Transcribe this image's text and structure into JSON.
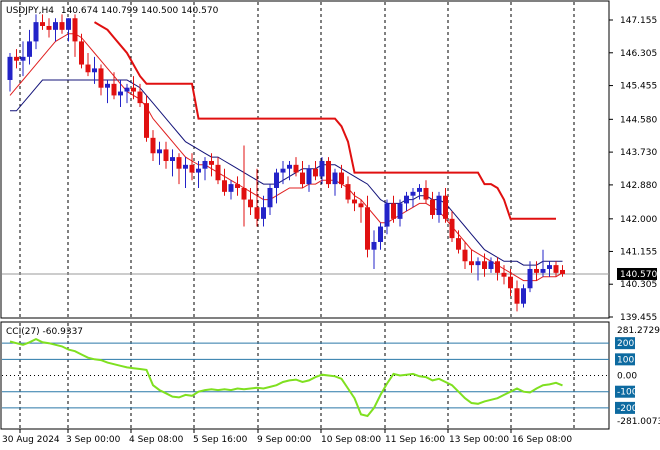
{
  "header": {
    "symbol": "USDJPY,H4",
    "ohlc": "140.674 140.799 140.500 140.570"
  },
  "colors": {
    "bull": "#2323c8",
    "bear": "#e01010",
    "ma_fast": "#e02020",
    "ma_slow": "#14147a",
    "stop_line": "#e01010",
    "cci_line": "#7fe020",
    "cci_levels": "#2a78a8",
    "grid": "#000000",
    "badge_bg": "#0d6aa0"
  },
  "chart_data": [
    {
      "type": "candlestick",
      "title": "USDJPY,H4",
      "ylim": [
        139.455,
        147.6
      ],
      "y_ticks": [
        "147.155",
        "146.305",
        "145.455",
        "144.580",
        "143.730",
        "142.880",
        "142.000",
        "141.155",
        "140.305",
        "139.455"
      ],
      "x_ticks": [
        "30 Aug 2024",
        "3 Sep 00:00",
        "4 Sep 08:00",
        "5 Sep 16:00",
        "9 Sep 00:00",
        "10 Sep 08:00",
        "11 Sep 16:00",
        "13 Sep 00:00",
        "16 Sep 08:00"
      ],
      "last_price": "140.570",
      "candles": [
        {
          "o": 145.6,
          "h": 146.3,
          "l": 145.3,
          "c": 146.2
        },
        {
          "o": 146.2,
          "h": 146.4,
          "l": 145.9,
          "c": 146.1
        },
        {
          "o": 146.1,
          "h": 146.6,
          "l": 145.7,
          "c": 146.2
        },
        {
          "o": 146.2,
          "h": 146.9,
          "l": 146.0,
          "c": 146.6
        },
        {
          "o": 146.6,
          "h": 147.3,
          "l": 146.4,
          "c": 147.1
        },
        {
          "o": 147.1,
          "h": 147.3,
          "l": 146.9,
          "c": 147.0
        },
        {
          "o": 147.0,
          "h": 147.2,
          "l": 146.7,
          "c": 146.9
        },
        {
          "o": 146.9,
          "h": 147.2,
          "l": 146.6,
          "c": 147.1
        },
        {
          "o": 147.1,
          "h": 147.3,
          "l": 146.8,
          "c": 146.9
        },
        {
          "o": 146.9,
          "h": 147.2,
          "l": 146.6,
          "c": 147.2
        },
        {
          "o": 147.2,
          "h": 147.3,
          "l": 146.2,
          "c": 146.6
        },
        {
          "o": 146.6,
          "h": 146.8,
          "l": 145.9,
          "c": 146.0
        },
        {
          "o": 146.0,
          "h": 146.3,
          "l": 145.7,
          "c": 145.8
        },
        {
          "o": 145.8,
          "h": 146.2,
          "l": 145.5,
          "c": 145.9
        },
        {
          "o": 145.9,
          "h": 146.0,
          "l": 145.2,
          "c": 145.4
        },
        {
          "o": 145.4,
          "h": 145.6,
          "l": 145.0,
          "c": 145.5
        },
        {
          "o": 145.5,
          "h": 145.8,
          "l": 145.1,
          "c": 145.2
        },
        {
          "o": 145.2,
          "h": 145.6,
          "l": 144.9,
          "c": 145.3
        },
        {
          "o": 145.3,
          "h": 145.5,
          "l": 145.0,
          "c": 145.4
        },
        {
          "o": 145.4,
          "h": 145.7,
          "l": 145.1,
          "c": 145.3
        },
        {
          "o": 145.3,
          "h": 145.5,
          "l": 144.9,
          "c": 145.0
        },
        {
          "o": 145.0,
          "h": 145.2,
          "l": 144.0,
          "c": 144.1
        },
        {
          "o": 144.1,
          "h": 144.3,
          "l": 143.5,
          "c": 143.7
        },
        {
          "o": 143.7,
          "h": 144.0,
          "l": 143.4,
          "c": 143.8
        },
        {
          "o": 143.8,
          "h": 144.0,
          "l": 143.3,
          "c": 143.5
        },
        {
          "o": 143.5,
          "h": 143.8,
          "l": 143.1,
          "c": 143.6
        },
        {
          "o": 143.6,
          "h": 143.7,
          "l": 142.9,
          "c": 143.3
        },
        {
          "o": 143.3,
          "h": 143.6,
          "l": 142.8,
          "c": 143.4
        },
        {
          "o": 143.4,
          "h": 143.7,
          "l": 143.0,
          "c": 143.2
        },
        {
          "o": 143.2,
          "h": 143.5,
          "l": 142.8,
          "c": 143.3
        },
        {
          "o": 143.3,
          "h": 143.6,
          "l": 143.0,
          "c": 143.5
        },
        {
          "o": 143.5,
          "h": 143.7,
          "l": 143.1,
          "c": 143.4
        },
        {
          "o": 143.4,
          "h": 143.6,
          "l": 142.9,
          "c": 143.0
        },
        {
          "o": 143.0,
          "h": 143.3,
          "l": 142.6,
          "c": 142.7
        },
        {
          "o": 142.7,
          "h": 143.0,
          "l": 142.5,
          "c": 142.9
        },
        {
          "o": 142.9,
          "h": 143.1,
          "l": 142.6,
          "c": 142.8
        },
        {
          "o": 142.8,
          "h": 143.9,
          "l": 141.8,
          "c": 142.5
        },
        {
          "o": 142.5,
          "h": 142.8,
          "l": 142.1,
          "c": 142.3
        },
        {
          "o": 142.3,
          "h": 143.3,
          "l": 141.8,
          "c": 142.0
        },
        {
          "o": 142.0,
          "h": 142.6,
          "l": 141.8,
          "c": 142.3
        },
        {
          "o": 142.3,
          "h": 142.9,
          "l": 142.1,
          "c": 142.8
        },
        {
          "o": 142.8,
          "h": 143.3,
          "l": 142.4,
          "c": 143.2
        },
        {
          "o": 143.2,
          "h": 143.5,
          "l": 142.9,
          "c": 143.3
        },
        {
          "o": 143.3,
          "h": 143.5,
          "l": 143.0,
          "c": 143.4
        },
        {
          "o": 143.4,
          "h": 143.6,
          "l": 143.1,
          "c": 143.2
        },
        {
          "o": 143.2,
          "h": 143.5,
          "l": 142.8,
          "c": 142.9
        },
        {
          "o": 142.9,
          "h": 143.4,
          "l": 142.7,
          "c": 143.3
        },
        {
          "o": 143.3,
          "h": 143.5,
          "l": 143.0,
          "c": 143.1
        },
        {
          "o": 143.1,
          "h": 143.6,
          "l": 142.9,
          "c": 143.5
        },
        {
          "o": 143.5,
          "h": 143.6,
          "l": 142.8,
          "c": 142.9
        },
        {
          "o": 142.9,
          "h": 143.3,
          "l": 142.6,
          "c": 143.2
        },
        {
          "o": 143.2,
          "h": 143.4,
          "l": 142.8,
          "c": 142.9
        },
        {
          "o": 142.9,
          "h": 143.1,
          "l": 142.4,
          "c": 142.5
        },
        {
          "o": 142.5,
          "h": 142.7,
          "l": 142.2,
          "c": 142.4
        },
        {
          "o": 142.4,
          "h": 142.5,
          "l": 141.9,
          "c": 142.3
        },
        {
          "o": 142.3,
          "h": 142.6,
          "l": 141.0,
          "c": 141.2
        },
        {
          "o": 141.2,
          "h": 141.7,
          "l": 140.7,
          "c": 141.4
        },
        {
          "o": 141.4,
          "h": 141.9,
          "l": 141.2,
          "c": 141.8
        },
        {
          "o": 141.8,
          "h": 142.5,
          "l": 141.6,
          "c": 142.4
        },
        {
          "o": 142.4,
          "h": 142.6,
          "l": 141.9,
          "c": 142.0
        },
        {
          "o": 142.0,
          "h": 142.5,
          "l": 141.8,
          "c": 142.4
        },
        {
          "o": 142.4,
          "h": 142.7,
          "l": 142.2,
          "c": 142.6
        },
        {
          "o": 142.6,
          "h": 142.8,
          "l": 142.3,
          "c": 142.7
        },
        {
          "o": 142.7,
          "h": 142.9,
          "l": 142.5,
          "c": 142.8
        },
        {
          "o": 142.8,
          "h": 143.0,
          "l": 142.4,
          "c": 142.5
        },
        {
          "o": 142.5,
          "h": 142.7,
          "l": 142.0,
          "c": 142.1
        },
        {
          "o": 142.1,
          "h": 142.7,
          "l": 141.9,
          "c": 142.6
        },
        {
          "o": 142.6,
          "h": 142.8,
          "l": 141.9,
          "c": 142.0
        },
        {
          "o": 142.0,
          "h": 142.2,
          "l": 141.4,
          "c": 141.5
        },
        {
          "o": 141.5,
          "h": 141.7,
          "l": 141.1,
          "c": 141.2
        },
        {
          "o": 141.2,
          "h": 141.4,
          "l": 140.7,
          "c": 140.9
        },
        {
          "o": 140.9,
          "h": 141.2,
          "l": 140.6,
          "c": 140.8
        },
        {
          "o": 140.8,
          "h": 141.0,
          "l": 140.4,
          "c": 140.9
        },
        {
          "o": 140.9,
          "h": 141.1,
          "l": 140.5,
          "c": 140.7
        },
        {
          "o": 140.7,
          "h": 141.0,
          "l": 140.6,
          "c": 140.9
        },
        {
          "o": 140.9,
          "h": 141.0,
          "l": 140.4,
          "c": 140.6
        },
        {
          "o": 140.6,
          "h": 140.8,
          "l": 140.3,
          "c": 140.5
        },
        {
          "o": 140.5,
          "h": 140.7,
          "l": 140.0,
          "c": 140.2
        },
        {
          "o": 140.2,
          "h": 140.4,
          "l": 139.6,
          "c": 139.8
        },
        {
          "o": 139.8,
          "h": 140.3,
          "l": 139.7,
          "c": 140.2
        },
        {
          "o": 140.2,
          "h": 140.9,
          "l": 140.1,
          "c": 140.7
        },
        {
          "o": 140.7,
          "h": 140.9,
          "l": 140.4,
          "c": 140.6
        },
        {
          "o": 140.6,
          "h": 141.2,
          "l": 140.5,
          "c": 140.7
        },
        {
          "o": 140.7,
          "h": 140.9,
          "l": 140.5,
          "c": 140.8
        },
        {
          "o": 140.8,
          "h": 140.9,
          "l": 140.5,
          "c": 140.6
        },
        {
          "o": 140.674,
          "h": 140.799,
          "l": 140.5,
          "c": 140.57
        }
      ],
      "ma_fast": [
        145.2,
        145.4,
        145.6,
        145.8,
        146.0,
        146.2,
        146.4,
        146.6,
        146.7,
        146.8,
        146.8,
        146.7,
        146.5,
        146.3,
        146.1,
        145.9,
        145.7,
        145.5,
        145.3,
        145.2,
        145.1,
        144.9,
        144.6,
        144.4,
        144.2,
        144.0,
        143.8,
        143.6,
        143.5,
        143.4,
        143.4,
        143.3,
        143.2,
        143.1,
        143.0,
        142.9,
        142.8,
        142.7,
        142.6,
        142.5,
        142.5,
        142.6,
        142.7,
        142.8,
        142.8,
        142.8,
        142.9,
        142.9,
        143.0,
        143.0,
        143.0,
        142.9,
        142.8,
        142.6,
        142.5,
        142.3,
        142.1,
        141.9,
        141.9,
        142.0,
        142.1,
        142.2,
        142.3,
        142.4,
        142.4,
        142.3,
        142.2,
        142.0,
        141.8,
        141.6,
        141.4,
        141.2,
        141.1,
        141.0,
        140.9,
        140.8,
        140.7,
        140.6,
        140.5,
        140.4,
        140.4,
        140.4,
        140.5,
        140.5,
        140.5,
        140.6
      ],
      "ma_slow": [
        144.8,
        144.8,
        145.0,
        145.2,
        145.4,
        145.6,
        145.6,
        145.6,
        145.6,
        145.6,
        145.6,
        145.6,
        145.6,
        145.6,
        145.6,
        145.6,
        145.6,
        145.6,
        145.6,
        145.5,
        145.4,
        145.2,
        145.0,
        144.8,
        144.6,
        144.4,
        144.2,
        144.0,
        143.9,
        143.8,
        143.7,
        143.6,
        143.6,
        143.5,
        143.4,
        143.3,
        143.2,
        143.1,
        143.0,
        142.9,
        142.9,
        142.9,
        143.0,
        143.1,
        143.2,
        143.3,
        143.3,
        143.3,
        143.4,
        143.4,
        143.4,
        143.3,
        143.2,
        143.1,
        143.0,
        142.9,
        142.7,
        142.5,
        142.4,
        142.4,
        142.4,
        142.5,
        142.5,
        142.6,
        142.6,
        142.5,
        142.5,
        142.4,
        142.2,
        142.0,
        141.8,
        141.6,
        141.4,
        141.2,
        141.1,
        141.0,
        140.9,
        140.9,
        140.9,
        140.8,
        140.8,
        140.8,
        140.9,
        140.9,
        140.9,
        140.9
      ],
      "stop_line": [
        null,
        null,
        null,
        null,
        null,
        null,
        null,
        null,
        null,
        null,
        null,
        null,
        null,
        147.1,
        147.0,
        146.9,
        146.7,
        146.5,
        146.3,
        146.0,
        145.7,
        145.5,
        145.5,
        145.5,
        145.5,
        145.5,
        145.5,
        145.5,
        145.5,
        144.6,
        144.6,
        144.6,
        144.6,
        144.6,
        144.6,
        144.6,
        144.6,
        144.6,
        144.6,
        144.6,
        144.6,
        144.6,
        144.6,
        144.6,
        144.6,
        144.6,
        144.6,
        144.6,
        144.6,
        144.6,
        144.6,
        144.4,
        144.0,
        143.2,
        143.2,
        143.2,
        143.2,
        143.2,
        143.2,
        143.2,
        143.2,
        143.2,
        143.2,
        143.2,
        143.2,
        143.2,
        143.2,
        143.2,
        143.2,
        143.2,
        143.2,
        143.2,
        143.2,
        142.9,
        142.9,
        142.8,
        142.5,
        142.0,
        142.0,
        142.0,
        142.0,
        142.0,
        142.0,
        142.0,
        142.0,
        null
      ]
    },
    {
      "type": "line",
      "title": "CCI(27) -60.9337",
      "ylim": [
        -281.0073,
        281.2729
      ],
      "y_ticks": [
        "281.2729",
        "200",
        "100",
        "0.00",
        "-100",
        "-200",
        "-281.0073"
      ],
      "levels": [
        200,
        100,
        -100,
        -200
      ],
      "series": [
        {
          "values": [
            210,
            200,
            190,
            205,
            225,
            205,
            200,
            190,
            180,
            160,
            150,
            130,
            110,
            100,
            95,
            80,
            70,
            60,
            50,
            45,
            40,
            35,
            -60,
            -90,
            -110,
            -130,
            -135,
            -120,
            -125,
            -100,
            -90,
            -85,
            -90,
            -85,
            -90,
            -80,
            -85,
            -80,
            -75,
            -80,
            -70,
            -60,
            -40,
            -30,
            -25,
            -40,
            -30,
            -10,
            5,
            0,
            -5,
            -20,
            -80,
            -140,
            -240,
            -250,
            -200,
            -120,
            -50,
            10,
            0,
            5,
            10,
            -5,
            -10,
            -30,
            -20,
            -40,
            -60,
            -100,
            -140,
            -170,
            -175,
            -160,
            -150,
            -140,
            -120,
            -100,
            -80,
            -100,
            -105,
            -80,
            -60,
            -55,
            -45,
            -61
          ]
        }
      ]
    }
  ]
}
